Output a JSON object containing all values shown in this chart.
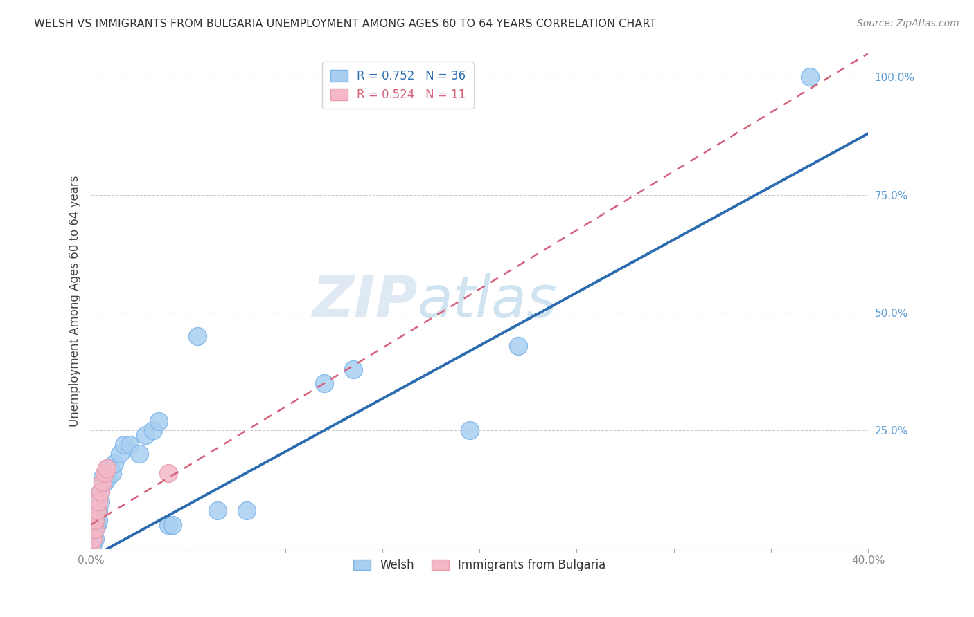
{
  "title": "WELSH VS IMMIGRANTS FROM BULGARIA UNEMPLOYMENT AMONG AGES 60 TO 64 YEARS CORRELATION CHART",
  "source": "Source: ZipAtlas.com",
  "ylabel": "Unemployment Among Ages 60 to 64 years",
  "xlim": [
    0.0,
    0.4
  ],
  "ylim": [
    0.0,
    1.05
  ],
  "welsh_R": 0.752,
  "welsh_N": 36,
  "bulgaria_R": 0.524,
  "bulgaria_N": 11,
  "welsh_color": "#a8cff0",
  "welsh_edge_color": "#7ab4e8",
  "welsh_line_color": "#2b6cb0",
  "bulgaria_color": "#f4b8c8",
  "bulgaria_edge_color": "#e89aaa",
  "bulgaria_line_color": "#d4607a",
  "watermark_zip": "ZIP",
  "watermark_atlas": "atlas",
  "welsh_line_x0": 0.0,
  "welsh_line_y0": -0.02,
  "welsh_line_x1": 0.4,
  "welsh_line_y1": 0.88,
  "bulgaria_line_x0": 0.0,
  "bulgaria_line_y0": 0.05,
  "bulgaria_line_x1": 0.4,
  "bulgaria_line_y1": 1.05,
  "welsh_x": [
    0.0,
    0.001,
    0.001,
    0.002,
    0.002,
    0.003,
    0.003,
    0.004,
    0.004,
    0.005,
    0.005,
    0.006,
    0.007,
    0.008,
    0.009,
    0.009,
    0.01,
    0.011,
    0.012,
    0.015,
    0.017,
    0.02,
    0.025,
    0.028,
    0.032,
    0.035,
    0.04,
    0.042,
    0.055,
    0.065,
    0.08,
    0.12,
    0.135,
    0.195,
    0.22,
    0.37
  ],
  "welsh_y": [
    0.0,
    0.01,
    0.02,
    0.02,
    0.04,
    0.05,
    0.07,
    0.06,
    0.08,
    0.1,
    0.12,
    0.15,
    0.14,
    0.16,
    0.15,
    0.17,
    0.17,
    0.16,
    0.18,
    0.2,
    0.22,
    0.22,
    0.2,
    0.24,
    0.25,
    0.27,
    0.05,
    0.05,
    0.45,
    0.08,
    0.08,
    0.35,
    0.38,
    0.25,
    0.43,
    1.0
  ],
  "bulgaria_x": [
    0.0,
    0.001,
    0.002,
    0.002,
    0.003,
    0.004,
    0.005,
    0.006,
    0.007,
    0.008,
    0.04
  ],
  "bulgaria_y": [
    0.0,
    0.02,
    0.04,
    0.06,
    0.08,
    0.1,
    0.12,
    0.14,
    0.16,
    0.17,
    0.16
  ]
}
